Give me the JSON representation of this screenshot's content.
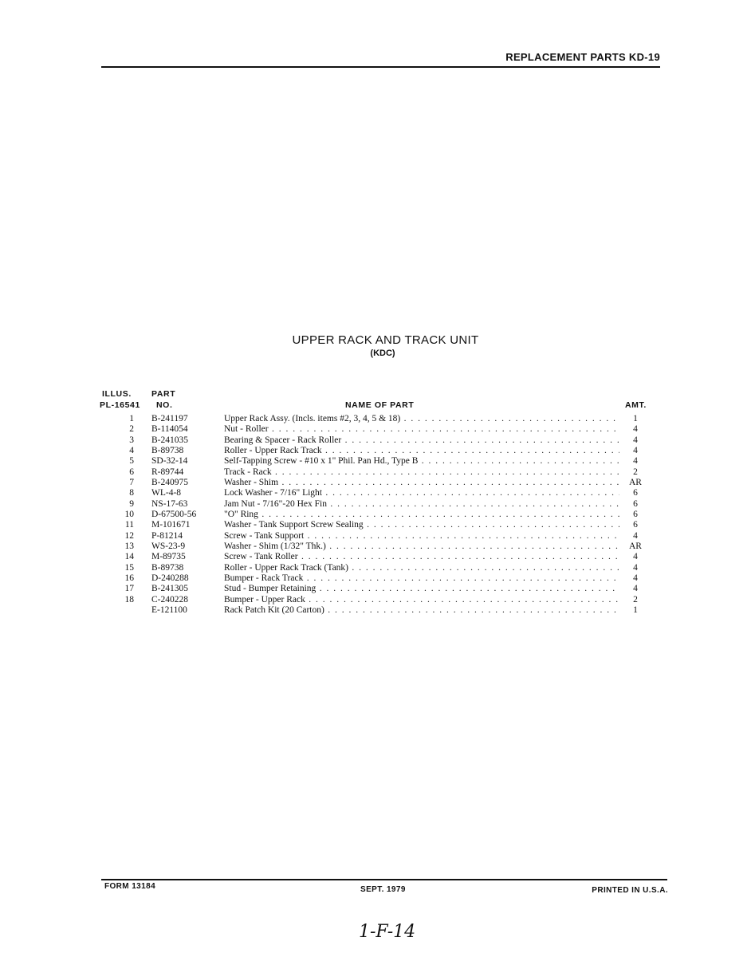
{
  "header": "REPLACEMENT PARTS KD-19",
  "title": "UPPER RACK AND TRACK UNIT",
  "subtitle": "(KDC)",
  "columns": {
    "illus_1": "ILLUS.",
    "illus_2": "PL-16541",
    "part_1": "PART",
    "part_2": "NO.",
    "name": "NAME OF PART",
    "amt": "AMT."
  },
  "rows": [
    {
      "illus": "1",
      "part": "B-241197",
      "name": "Upper Rack Assy. (Incls. items #2, 3, 4, 5 & 18)",
      "amt": "1"
    },
    {
      "illus": "2",
      "part": "B-114054",
      "name": "Nut - Roller",
      "amt": "4"
    },
    {
      "illus": "3",
      "part": "B-241035",
      "name": "Bearing & Spacer - Rack Roller",
      "amt": "4"
    },
    {
      "illus": "4",
      "part": "B-89738",
      "name": "Roller - Upper Rack Track",
      "amt": "4"
    },
    {
      "illus": "5",
      "part": "SD-32-14",
      "name": "Self-Tapping Screw - #10 x 1\" Phil. Pan Hd., Type B",
      "amt": "4"
    },
    {
      "illus": "6",
      "part": "R-89744",
      "name": "Track - Rack",
      "amt": "2"
    },
    {
      "illus": "7",
      "part": "B-240975",
      "name": "Washer - Shim",
      "amt": "AR"
    },
    {
      "illus": "8",
      "part": "WL-4-8",
      "name": "Lock Washer - 7/16\" Light",
      "amt": "6"
    },
    {
      "illus": "9",
      "part": "NS-17-63",
      "name": "Jam Nut - 7/16\"-20 Hex Fin",
      "amt": "6"
    },
    {
      "illus": "10",
      "part": "D-67500-56",
      "name": "\"O\" Ring",
      "amt": "6"
    },
    {
      "illus": "11",
      "part": "M-101671",
      "name": "Washer - Tank Support Screw Sealing",
      "amt": "6"
    },
    {
      "illus": "12",
      "part": "P-81214",
      "name": "Screw - Tank Support",
      "amt": "4"
    },
    {
      "illus": "13",
      "part": "WS-23-9",
      "name": "Washer - Shim (1/32\" Thk.)",
      "amt": "AR"
    },
    {
      "illus": "14",
      "part": "M-89735",
      "name": "Screw - Tank Roller",
      "amt": "4"
    },
    {
      "illus": "15",
      "part": "B-89738",
      "name": "Roller - Upper Rack Track (Tank)",
      "amt": "4"
    },
    {
      "illus": "16",
      "part": "D-240288",
      "name": "Bumper - Rack Track",
      "amt": "4"
    },
    {
      "illus": "17",
      "part": "B-241305",
      "name": "Stud - Bumper Retaining",
      "amt": "4"
    },
    {
      "illus": "18",
      "part": "C-240228",
      "name": "Bumper - Upper Rack",
      "amt": "2"
    },
    {
      "illus": "",
      "part": "E-121100",
      "name": "Rack Patch Kit (20 Carton)",
      "amt": "1"
    }
  ],
  "footer": {
    "form": "FORM 13184",
    "date": "SEPT. 1979",
    "printed": "PRINTED IN U.S.A."
  },
  "handwritten": "1-F-14"
}
